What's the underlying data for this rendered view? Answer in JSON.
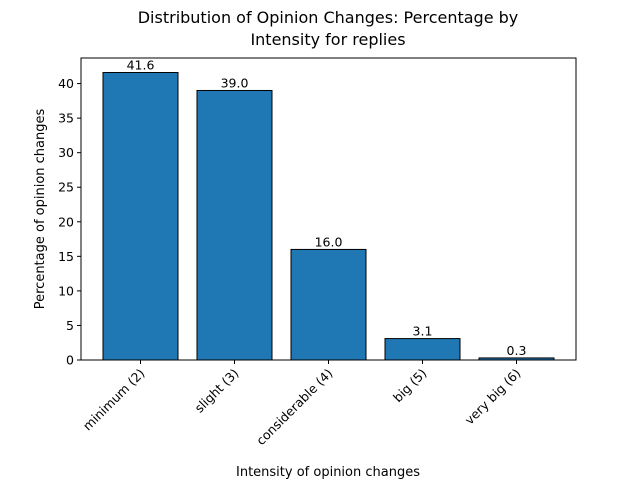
{
  "chart_data": {
    "type": "bar",
    "title_line1": "Distribution of Opinion Changes: Percentage by",
    "title_line2": "Intensity for replies",
    "xlabel": "Intensity of opinion changes",
    "ylabel": "Percentage of opinion changes",
    "categories": [
      "minimum (2)",
      "slight (3)",
      "considerable (4)",
      "big (5)",
      "very big (6)"
    ],
    "values": [
      41.6,
      39.0,
      16.0,
      3.1,
      0.3
    ],
    "value_labels": [
      "41.6",
      "39.0",
      "16.0",
      "3.1",
      "0.3"
    ],
    "ylim": [
      0,
      43.7
    ],
    "yticks": [
      0,
      5,
      10,
      15,
      20,
      25,
      30,
      35,
      40
    ],
    "grid": false,
    "bar_color": "#1f77b4",
    "edge_color": "#000000"
  }
}
